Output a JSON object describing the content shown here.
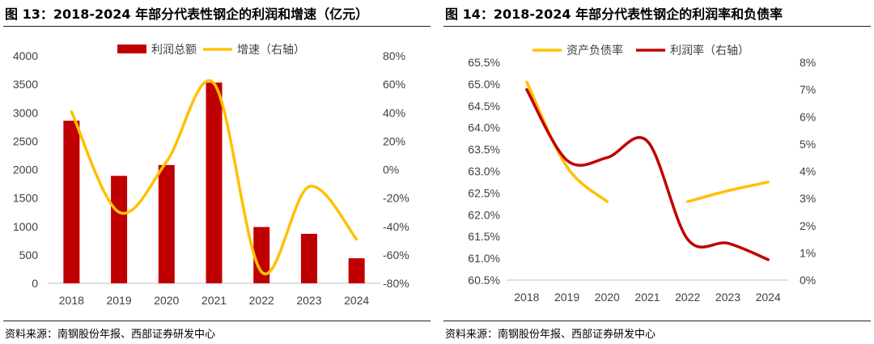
{
  "left": {
    "title": "图 13：2018-2024 年部分代表性钢企的利润和增速（亿元）",
    "source": "资料来源：南钢股份年报、西部证券研发中心"
  },
  "right": {
    "title": "图 14：2018-2024 年部分代表性钢企的利润率和负债率",
    "source": "资料来源：南钢股份年报、西部证券研发中心"
  },
  "chart_data": [
    {
      "type": "bar",
      "categories": [
        "2018",
        "2019",
        "2020",
        "2021",
        "2022",
        "2023",
        "2024"
      ],
      "series": [
        {
          "name": "利润总额",
          "type": "bar",
          "axis": "left",
          "color": "#C00000",
          "values": [
            2860,
            1890,
            2080,
            3530,
            990,
            870,
            440
          ]
        },
        {
          "name": "增速（右轴）",
          "type": "line",
          "axis": "right",
          "color": "#FFC000",
          "values": [
            40.7,
            -30.0,
            5.5,
            60.5,
            -72.0,
            -12.0,
            -49.0
          ]
        }
      ],
      "ylim_left": [
        0,
        4000
      ],
      "yticks_left": [
        "0",
        "500",
        "1000",
        "1500",
        "2000",
        "2500",
        "3000",
        "3500",
        "4000"
      ],
      "ylim_right": [
        -80,
        80
      ],
      "yticks_right": [
        "-80%",
        "-60%",
        "-40%",
        "-20%",
        "0%",
        "20%",
        "40%",
        "60%",
        "80%"
      ],
      "legend": "top",
      "grid": false
    },
    {
      "type": "line",
      "categories": [
        "2018",
        "2019",
        "2020",
        "2021",
        "2022",
        "2023",
        "2024"
      ],
      "series": [
        {
          "name": "资产负债率",
          "axis": "left",
          "color": "#FFC000",
          "values": [
            65.05,
            63.1,
            62.3,
            null,
            62.3,
            62.55,
            62.75
          ]
        },
        {
          "name": "利润率（右轴）",
          "axis": "right",
          "color": "#C00000",
          "values": [
            7.0,
            4.4,
            4.5,
            5.1,
            1.5,
            1.35,
            0.75
          ]
        }
      ],
      "ylim_left": [
        60.5,
        65.5
      ],
      "yticks_left": [
        "60.5%",
        "61.0%",
        "61.5%",
        "62.0%",
        "62.5%",
        "63.0%",
        "63.5%",
        "64.0%",
        "64.5%",
        "65.0%",
        "65.5%"
      ],
      "ylim_right": [
        0,
        8
      ],
      "yticks_right": [
        "0%",
        "1%",
        "2%",
        "3%",
        "4%",
        "5%",
        "6%",
        "7%",
        "8%"
      ],
      "legend": "top",
      "grid": false
    }
  ]
}
